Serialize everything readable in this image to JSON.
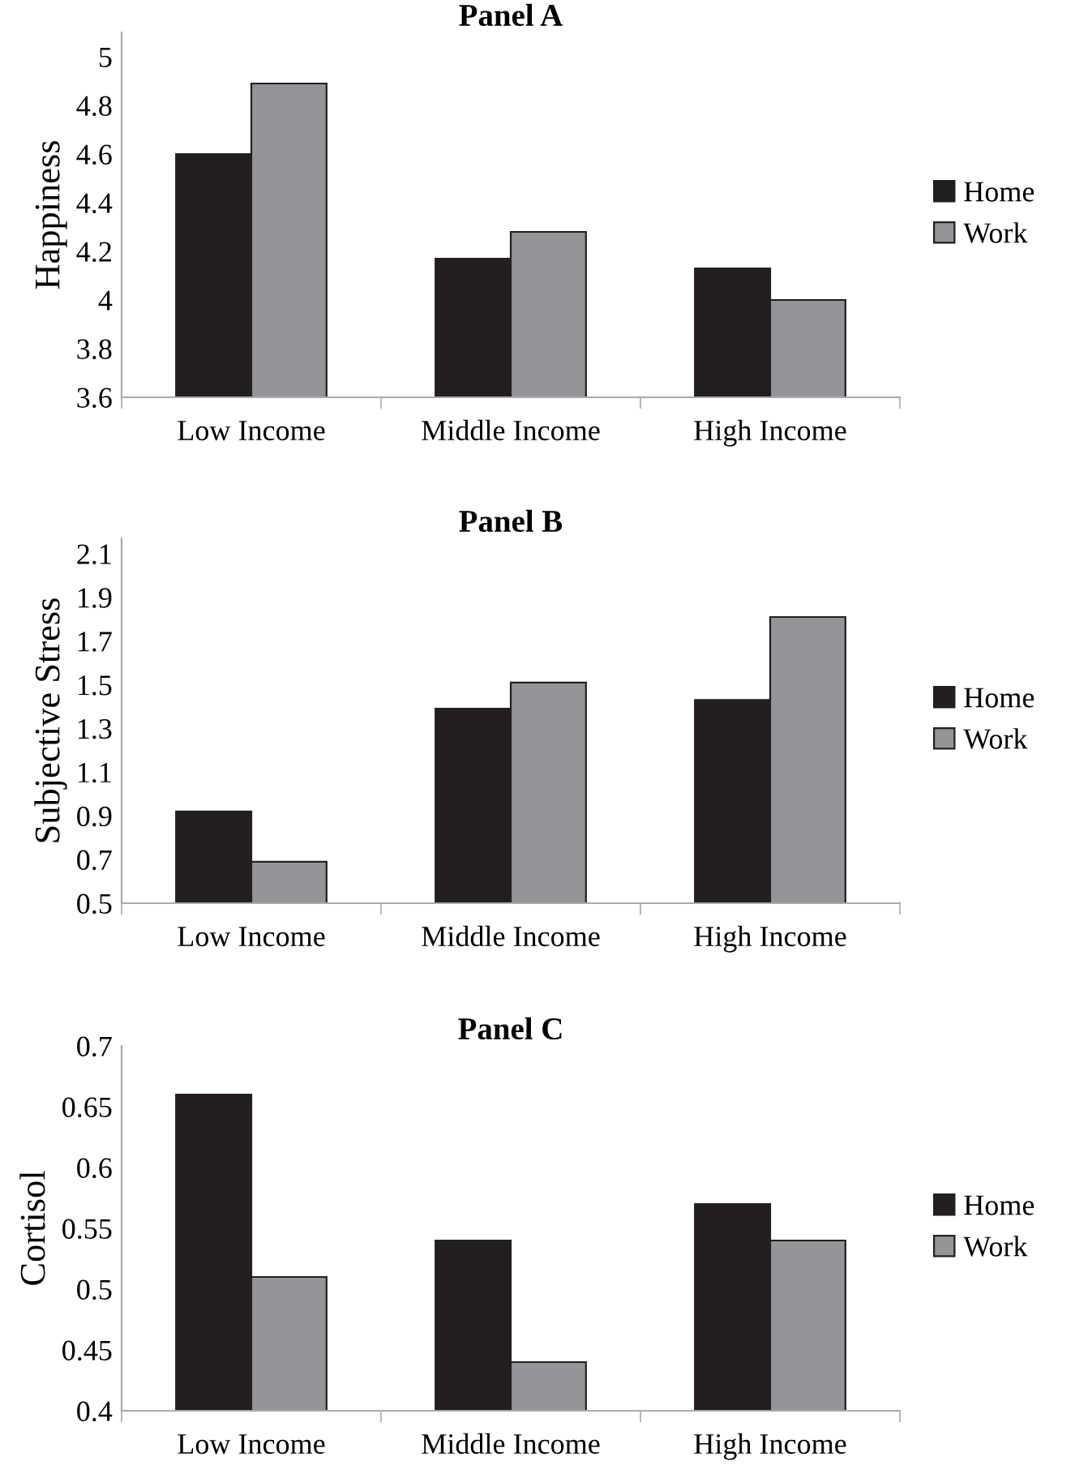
{
  "chart_data": [
    {
      "type": "bar",
      "title": "Panel A",
      "ylabel": "Happiness",
      "categories": [
        "Low Income",
        "Middle Income",
        "High Income"
      ],
      "series": [
        {
          "name": "Home",
          "color": "#231f20",
          "values": [
            4.6,
            4.17,
            4.13
          ]
        },
        {
          "name": "Work",
          "color": "#939598",
          "values": [
            4.89,
            4.28,
            4.0
          ]
        }
      ],
      "ylim": [
        3.6,
        5.1
      ],
      "yticks": [
        3.6,
        3.8,
        4,
        4.2,
        4.4,
        4.6,
        4.8,
        5
      ],
      "grid": false,
      "legend": "right"
    },
    {
      "type": "bar",
      "title": "Panel B",
      "ylabel": "Subjective Stress",
      "categories": [
        "Low Income",
        "Middle Income",
        "High Income"
      ],
      "series": [
        {
          "name": "Home",
          "color": "#231f20",
          "values": [
            0.92,
            1.39,
            1.43
          ]
        },
        {
          "name": "Work",
          "color": "#939598",
          "values": [
            0.69,
            1.51,
            1.81
          ]
        }
      ],
      "ylim": [
        0.5,
        2.17
      ],
      "yticks": [
        0.5,
        0.7,
        0.9,
        1.1,
        1.3,
        1.5,
        1.7,
        1.9,
        2.1
      ],
      "grid": false,
      "legend": "right"
    },
    {
      "type": "bar",
      "title": "Panel C",
      "ylabel": "Cortisol",
      "categories": [
        "Low Income",
        "Middle Income",
        "High Income"
      ],
      "series": [
        {
          "name": "Home",
          "color": "#231f20",
          "values": [
            0.66,
            0.54,
            0.57
          ]
        },
        {
          "name": "Work",
          "color": "#939598",
          "values": [
            0.51,
            0.44,
            0.54
          ]
        }
      ],
      "ylim": [
        0.4,
        0.7
      ],
      "yticks": [
        0.4,
        0.45,
        0.5,
        0.55,
        0.6,
        0.65,
        0.7
      ],
      "grid": false,
      "legend": "right"
    }
  ]
}
